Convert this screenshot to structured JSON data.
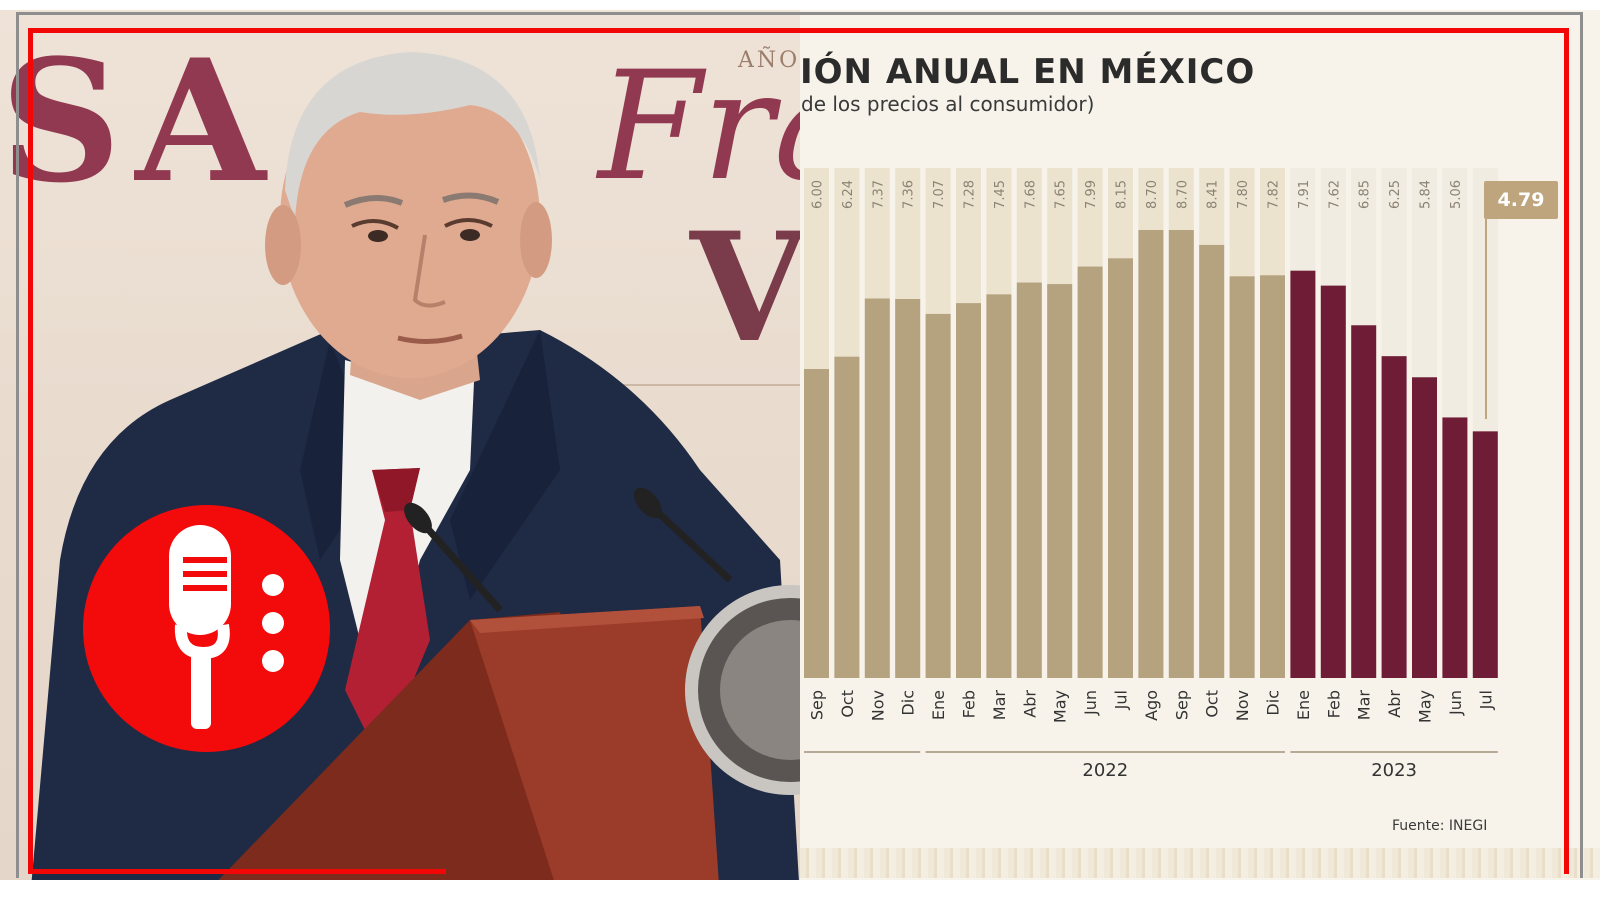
{
  "chart_data": {
    "type": "bar",
    "title": "IÓN ANUAL EN MÉXICO",
    "subtitle": "de los precios al consumidor)",
    "categories": [
      "Sep",
      "Oct",
      "Nov",
      "Dic",
      "Ene",
      "Feb",
      "Mar",
      "Abr",
      "May",
      "Jun",
      "Jul",
      "Ago",
      "Sep",
      "Oct",
      "Nov",
      "Dic",
      "Ene",
      "Feb",
      "Mar",
      "Abr",
      "May",
      "Jun",
      "Jul"
    ],
    "values": [
      6.0,
      6.24,
      7.37,
      7.36,
      7.07,
      7.28,
      7.45,
      7.68,
      7.65,
      7.99,
      8.15,
      8.7,
      8.7,
      8.41,
      7.8,
      7.82,
      7.91,
      7.62,
      6.85,
      6.25,
      5.84,
      5.06,
      4.79
    ],
    "value_labels": [
      "6.00",
      "6.24",
      "7.37",
      "7.36",
      "7.07",
      "7.28",
      "7.45",
      "7.68",
      "7.65",
      "7.99",
      "8.15",
      "8.70",
      "8.70",
      "8.41",
      "7.80",
      "7.82",
      "7.91",
      "7.62",
      "6.85",
      "6.25",
      "5.84",
      "5.06",
      "4.79"
    ],
    "year_groups": [
      {
        "label": "",
        "from": 0,
        "to": 3
      },
      {
        "label": "2022",
        "from": 4,
        "to": 15
      },
      {
        "label": "2023",
        "from": 16,
        "to": 22
      }
    ],
    "highlight_label": "4.79",
    "source": "Fuente: INEGI",
    "ylim": [
      0,
      9
    ],
    "grid": false,
    "colors": {
      "y2021_2022": "#b5a27e",
      "y2023": "#6f1d36",
      "highlight": "#bea57e"
    }
  },
  "video": {
    "colors": {
      "badge": "#f30a0b",
      "frame": "#f20606",
      "suit": "#1f2a44",
      "tie": "#b32034",
      "podium": "#7d2b1d"
    },
    "icons": [
      "microphone-icon"
    ]
  }
}
